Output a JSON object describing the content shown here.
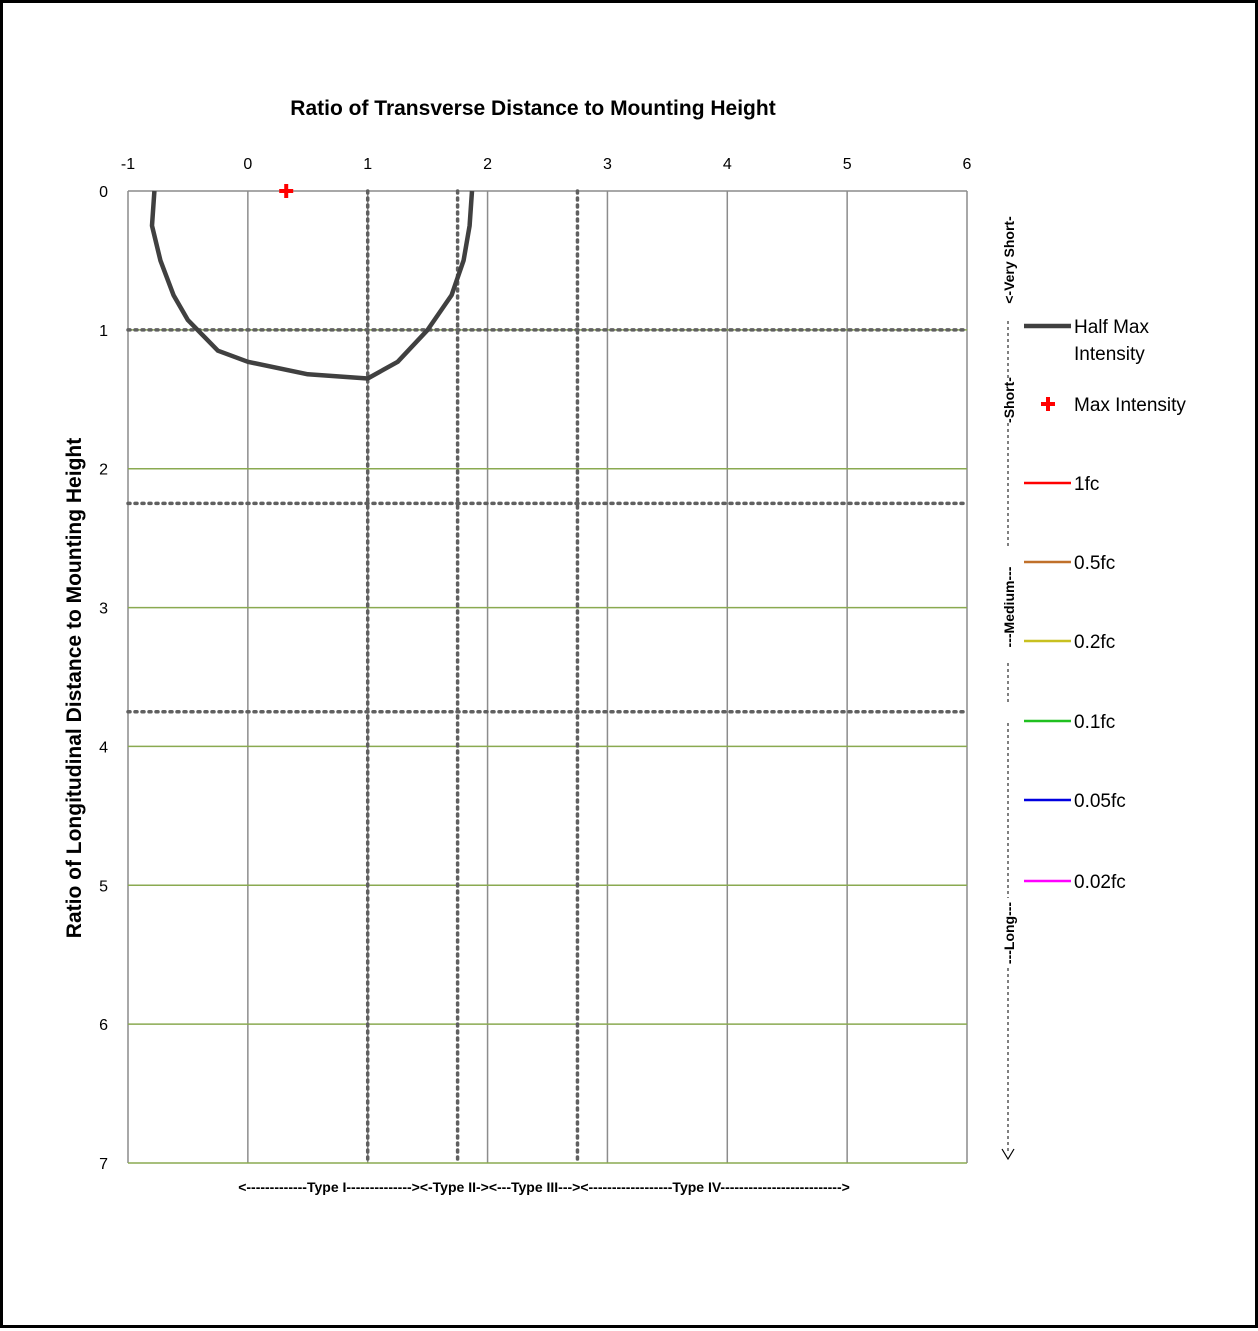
{
  "chart_data": {
    "type": "scatter",
    "title": "Ratio of Transverse Distance to Mounting Height",
    "xlabel": "Ratio of Transverse Distance to Mounting Height",
    "ylabel": "Ratio of Longitudinal Distance to Mounting Height",
    "xlim": [
      -1,
      6
    ],
    "ylim": [
      0,
      7
    ],
    "y_inverted": true,
    "x_axis_position": "top",
    "x_ticks": [
      "-1",
      "0",
      "1",
      "2",
      "3",
      "4",
      "5",
      "6"
    ],
    "y_ticks": [
      "0",
      "1",
      "2",
      "3",
      "4",
      "5",
      "6",
      "7"
    ],
    "grid": true,
    "type_boundaries_x": [
      1,
      1.75,
      2.75
    ],
    "length_boundaries_y": [
      1,
      2.25,
      3.75
    ],
    "bottom_band_labels": "<-------------Type I--------------><-Type II-><---Type III---><------------------Type IV-------------------------->",
    "right_band_labels": {
      "very_short": "<-Very Short-",
      "short": "-Short-",
      "medium": "---Medium---",
      "long": "---Long---"
    },
    "series": [
      {
        "name": "Half Max Intensity",
        "color": "#404040",
        "x": [
          -0.78,
          -0.8,
          -0.73,
          -0.62,
          -0.5,
          -0.25,
          0,
          0.5,
          1,
          1.25,
          1.5,
          1.7,
          1.8,
          1.85,
          1.87
        ],
        "y": [
          0,
          0.25,
          0.5,
          0.75,
          0.93,
          1.15,
          1.23,
          1.32,
          1.35,
          1.23,
          1,
          0.75,
          0.5,
          0.25,
          0
        ]
      },
      {
        "name": "Max Intensity",
        "color": "#ff0000",
        "x": [
          0.32
        ],
        "y": [
          0
        ]
      },
      {
        "name": "1fc",
        "color": "#ff0000",
        "x": [],
        "y": []
      },
      {
        "name": "0.5fc",
        "color": "#c0702a",
        "x": [],
        "y": []
      },
      {
        "name": "0.2fc",
        "color": "#c8c020",
        "x": [],
        "y": []
      },
      {
        "name": "0.1fc",
        "color": "#20c020",
        "x": [],
        "y": []
      },
      {
        "name": "0.05fc",
        "color": "#0000e0",
        "x": [],
        "y": []
      },
      {
        "name": "0.02fc",
        "color": "#ff00ff",
        "x": [],
        "y": []
      }
    ],
    "legend": {
      "half_max_line1": "Half Max",
      "half_max_line2": "Intensity",
      "max_intensity": "Max Intensity"
    }
  }
}
